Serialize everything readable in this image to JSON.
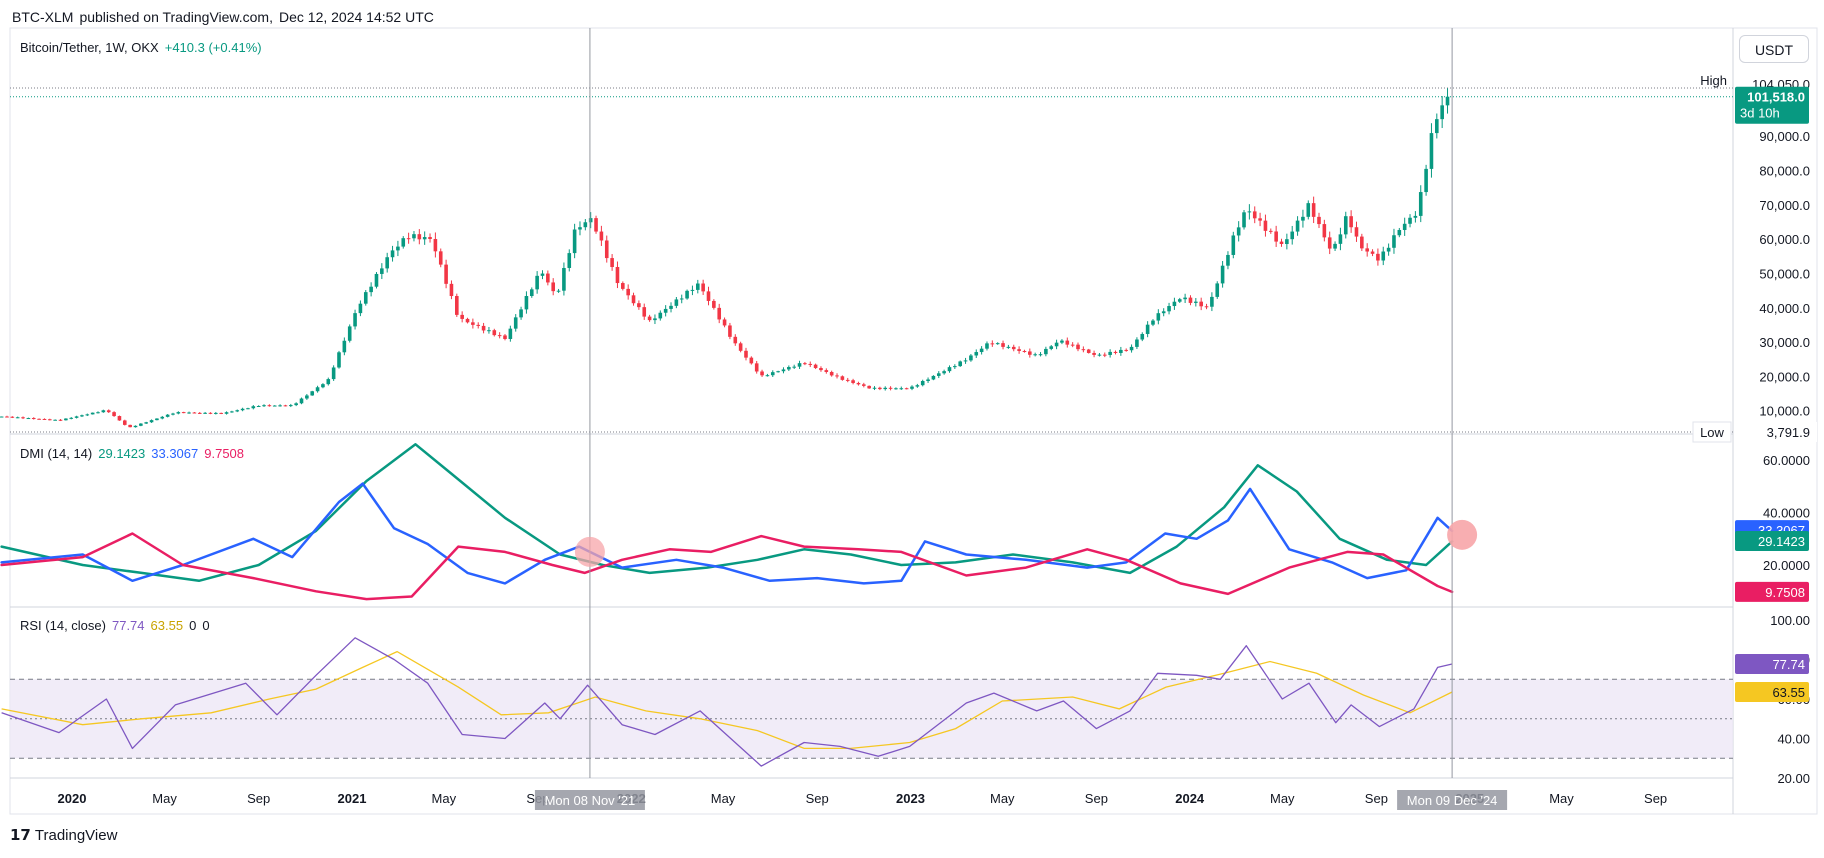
{
  "header": {
    "symbol": "BTC-XLM",
    "published_on": "published on TradingView.com,",
    "date": "Dec 12, 2024 14:52 UTC"
  },
  "price_panel": {
    "title": "Bitcoin/Tether, 1W, OKX",
    "change": "+410.3 (+0.41%)",
    "currency": "USDT",
    "high_label": "High",
    "high_value": "104,050.0",
    "low_label": "Low",
    "low_value": "3,791.9",
    "last_price": "101,518.0",
    "countdown": "3d 10h",
    "colors": {
      "up": "#089981",
      "down": "#f23645",
      "last": "#089981"
    }
  },
  "dmi": {
    "title": "DMI (14, 14)",
    "adx": "29.1423",
    "plus_di": "33.3067",
    "minus_di": "9.7508",
    "hidden_label": "40.0000",
    "colors": {
      "adx": "#089981",
      "plus": "#2962ff",
      "minus": "#e91e63",
      "marker": "#f7a5a9"
    }
  },
  "rsi": {
    "title": "RSI (14, close)",
    "rsi_value": "77.74",
    "ma_value": "63.55",
    "extra1": "0",
    "extra2": "0",
    "hidden_label": "80.00",
    "colors": {
      "rsi": "#7e57c2",
      "ma": "#f5c722",
      "band": "#ede7f6"
    }
  },
  "crosshair": {
    "left_label": "Mon 08 Nov '21",
    "right_label": "Mon 09 Dec '24"
  },
  "footer": {
    "brand": "TradingView",
    "logo": "tradingview-logo-icon"
  },
  "chart_data": [
    {
      "type": "candlestick",
      "title": "Bitcoin/Tether, 1W, OKX",
      "x_ticks": [
        "2020",
        "May",
        "Sep",
        "2021",
        "May",
        "Sep",
        "2022",
        "May",
        "Sep",
        "2023",
        "May",
        "Sep",
        "2024",
        "May",
        "Sep",
        "2025",
        "May",
        "Sep"
      ],
      "y_ticks": [
        "10,000.0",
        "20,000.0",
        "30,000.0",
        "40,000.0",
        "50,000.0",
        "60,000.0",
        "70,000.0",
        "80,000.0",
        "90,000.0"
      ],
      "ylim": [
        3791.9,
        104050
      ],
      "anchors": [
        [
          "2019-10-01",
          8300
        ],
        [
          "2019-12-15",
          7200
        ],
        [
          "2020-02-15",
          10200
        ],
        [
          "2020-03-15",
          5000
        ],
        [
          "2020-05-15",
          9500
        ],
        [
          "2020-07-15",
          9200
        ],
        [
          "2020-09-01",
          11500
        ],
        [
          "2020-10-15",
          11500
        ],
        [
          "2020-12-01",
          19000
        ],
        [
          "2021-01-08",
          40000
        ],
        [
          "2021-02-20",
          56000
        ],
        [
          "2021-03-15",
          61000
        ],
        [
          "2021-04-15",
          60000
        ],
        [
          "2021-05-20",
          37000
        ],
        [
          "2021-07-20",
          31000
        ],
        [
          "2021-09-05",
          51000
        ],
        [
          "2021-09-25",
          43000
        ],
        [
          "2021-10-20",
          63000
        ],
        [
          "2021-11-10",
          66000
        ],
        [
          "2021-12-15",
          47000
        ],
        [
          "2022-01-25",
          36000
        ],
        [
          "2022-03-30",
          47000
        ],
        [
          "2022-05-15",
          30000
        ],
        [
          "2022-06-20",
          20000
        ],
        [
          "2022-08-15",
          24000
        ],
        [
          "2022-09-30",
          19500
        ],
        [
          "2022-11-10",
          16500
        ],
        [
          "2022-12-31",
          16500
        ],
        [
          "2023-03-15",
          25000
        ],
        [
          "2023-04-15",
          30000
        ],
        [
          "2023-06-15",
          26000
        ],
        [
          "2023-07-15",
          30500
        ],
        [
          "2023-09-01",
          26000
        ],
        [
          "2023-10-15",
          28000
        ],
        [
          "2023-11-15",
          37000
        ],
        [
          "2023-12-20",
          43000
        ],
        [
          "2024-01-25",
          40000
        ],
        [
          "2024-02-28",
          61000
        ],
        [
          "2024-03-15",
          69000
        ],
        [
          "2024-05-01",
          58000
        ],
        [
          "2024-06-05",
          70000
        ],
        [
          "2024-07-05",
          56000
        ],
        [
          "2024-07-25",
          67000
        ],
        [
          "2024-08-10",
          58000
        ],
        [
          "2024-09-05",
          54000
        ],
        [
          "2024-10-01",
          63000
        ],
        [
          "2024-10-25",
          68000
        ],
        [
          "2024-11-12",
          90000
        ],
        [
          "2024-11-22",
          98000
        ],
        [
          "2024-12-09",
          101518
        ]
      ]
    },
    {
      "type": "line",
      "title": "DMI (14, 14)",
      "y_ticks": [
        "20.0000",
        "60.0000"
      ],
      "series": [
        {
          "name": "ADX",
          "points": [
            [
              "2019-10-01",
              27
            ],
            [
              "2020-01-15",
              20
            ],
            [
              "2020-04-01",
              17
            ],
            [
              "2020-06-15",
              14
            ],
            [
              "2020-09-01",
              20
            ],
            [
              "2020-11-15",
              33
            ],
            [
              "2021-01-20",
              52
            ],
            [
              "2021-03-25",
              66
            ],
            [
              "2021-05-10",
              55
            ],
            [
              "2021-07-20",
              38
            ],
            [
              "2021-09-30",
              24
            ],
            [
              "2021-11-25",
              20
            ],
            [
              "2022-01-25",
              17
            ],
            [
              "2022-04-10",
              19
            ],
            [
              "2022-06-15",
              22
            ],
            [
              "2022-08-15",
              26
            ],
            [
              "2022-10-15",
              24
            ],
            [
              "2022-12-20",
              20
            ],
            [
              "2023-03-01",
              21
            ],
            [
              "2023-05-15",
              24
            ],
            [
              "2023-08-01",
              21
            ],
            [
              "2023-10-15",
              17
            ],
            [
              "2023-12-15",
              27
            ],
            [
              "2024-02-15",
              42
            ],
            [
              "2024-03-30",
              58
            ],
            [
              "2024-05-20",
              48
            ],
            [
              "2024-07-15",
              30
            ],
            [
              "2024-09-15",
              22
            ],
            [
              "2024-11-05",
              20
            ],
            [
              "2024-12-09",
              29
            ]
          ]
        },
        {
          "name": "+DI",
          "points": [
            [
              "2019-10-01",
              21
            ],
            [
              "2020-01-15",
              24
            ],
            [
              "2020-03-20",
              14
            ],
            [
              "2020-05-25",
              20
            ],
            [
              "2020-08-25",
              30
            ],
            [
              "2020-10-15",
              23
            ],
            [
              "2020-12-15",
              44
            ],
            [
              "2021-01-15",
              51
            ],
            [
              "2021-02-25",
              34
            ],
            [
              "2021-04-10",
              28
            ],
            [
              "2021-06-01",
              17
            ],
            [
              "2021-07-20",
              13
            ],
            [
              "2021-09-10",
              22
            ],
            [
              "2021-10-25",
              27
            ],
            [
              "2021-12-20",
              19
            ],
            [
              "2022-03-01",
              22
            ],
            [
              "2022-05-01",
              19
            ],
            [
              "2022-07-01",
              14
            ],
            [
              "2022-09-01",
              15
            ],
            [
              "2022-11-01",
              13
            ],
            [
              "2022-12-20",
              14
            ],
            [
              "2023-01-20",
              29
            ],
            [
              "2023-03-15",
              24
            ],
            [
              "2023-06-01",
              22
            ],
            [
              "2023-08-20",
              19
            ],
            [
              "2023-10-10",
              21
            ],
            [
              "2023-11-30",
              32
            ],
            [
              "2024-01-10",
              30
            ],
            [
              "2024-02-20",
              37
            ],
            [
              "2024-03-20",
              49
            ],
            [
              "2024-05-10",
              26
            ],
            [
              "2024-07-05",
              21
            ],
            [
              "2024-08-20",
              15
            ],
            [
              "2024-10-10",
              18
            ],
            [
              "2024-11-20",
              38
            ],
            [
              "2024-12-09",
              33
            ]
          ]
        },
        {
          "name": "-DI",
          "points": [
            [
              "2019-10-01",
              20
            ],
            [
              "2020-01-15",
              23
            ],
            [
              "2020-03-20",
              32
            ],
            [
              "2020-05-25",
              20
            ],
            [
              "2020-08-25",
              15
            ],
            [
              "2020-11-15",
              10
            ],
            [
              "2021-01-20",
              7
            ],
            [
              "2021-03-20",
              8
            ],
            [
              "2021-05-20",
              27
            ],
            [
              "2021-07-20",
              25
            ],
            [
              "2021-09-20",
              20
            ],
            [
              "2021-11-01",
              17
            ],
            [
              "2021-12-20",
              22
            ],
            [
              "2022-02-20",
              26
            ],
            [
              "2022-04-15",
              25
            ],
            [
              "2022-06-20",
              31
            ],
            [
              "2022-08-15",
              27
            ],
            [
              "2022-10-25",
              26
            ],
            [
              "2022-12-20",
              25
            ],
            [
              "2023-03-15",
              16
            ],
            [
              "2023-06-01",
              19
            ],
            [
              "2023-08-20",
              26
            ],
            [
              "2023-10-10",
              22
            ],
            [
              "2023-12-20",
              13
            ],
            [
              "2024-02-20",
              9
            ],
            [
              "2024-05-10",
              19
            ],
            [
              "2024-07-25",
              25
            ],
            [
              "2024-09-10",
              24
            ],
            [
              "2024-11-20",
              12
            ],
            [
              "2024-12-09",
              9.75
            ]
          ]
        }
      ]
    },
    {
      "type": "line",
      "title": "RSI (14, close)",
      "y_ticks": [
        "20.00",
        "40.00",
        "60.00",
        "100.00"
      ],
      "levels": [
        70,
        50,
        30
      ],
      "series": [
        {
          "name": "RSI",
          "points": [
            [
              "2019-10-01",
              53
            ],
            [
              "2019-12-15",
              43
            ],
            [
              "2020-02-15",
              60
            ],
            [
              "2020-03-20",
              35
            ],
            [
              "2020-05-15",
              57
            ],
            [
              "2020-08-15",
              68
            ],
            [
              "2020-09-25",
              52
            ],
            [
              "2020-11-15",
              72
            ],
            [
              "2021-01-05",
              91
            ],
            [
              "2021-02-25",
              80
            ],
            [
              "2021-04-10",
              68
            ],
            [
              "2021-05-25",
              42
            ],
            [
              "2021-07-20",
              40
            ],
            [
              "2021-09-10",
              58
            ],
            [
              "2021-09-30",
              50
            ],
            [
              "2021-11-05",
              67
            ],
            [
              "2021-12-20",
              47
            ],
            [
              "2022-02-01",
              42
            ],
            [
              "2022-04-01",
              54
            ],
            [
              "2022-06-20",
              26
            ],
            [
              "2022-08-15",
              38
            ],
            [
              "2022-10-01",
              36
            ],
            [
              "2022-11-20",
              31
            ],
            [
              "2022-12-31",
              36
            ],
            [
              "2023-03-15",
              58
            ],
            [
              "2023-04-20",
              63
            ],
            [
              "2023-06-15",
              54
            ],
            [
              "2023-07-20",
              59
            ],
            [
              "2023-09-01",
              45
            ],
            [
              "2023-10-15",
              54
            ],
            [
              "2023-11-20",
              73
            ],
            [
              "2024-01-10",
              72
            ],
            [
              "2024-02-10",
              70
            ],
            [
              "2024-03-15",
              87
            ],
            [
              "2024-05-01",
              60
            ],
            [
              "2024-06-05",
              68
            ],
            [
              "2024-07-10",
              48
            ],
            [
              "2024-07-30",
              57
            ],
            [
              "2024-09-05",
              46
            ],
            [
              "2024-10-20",
              55
            ],
            [
              "2024-11-20",
              76
            ],
            [
              "2024-12-09",
              77.74
            ]
          ]
        },
        {
          "name": "MA",
          "points": [
            [
              "2019-10-01",
              55
            ],
            [
              "2020-01-15",
              47
            ],
            [
              "2020-04-01",
              50
            ],
            [
              "2020-07-01",
              53
            ],
            [
              "2020-09-15",
              60
            ],
            [
              "2020-11-15",
              65
            ],
            [
              "2021-01-15",
              76
            ],
            [
              "2021-03-01",
              84
            ],
            [
              "2021-05-20",
              66
            ],
            [
              "2021-07-15",
              52
            ],
            [
              "2021-09-15",
              53
            ],
            [
              "2021-11-15",
              61
            ],
            [
              "2022-01-20",
              54
            ],
            [
              "2022-04-01",
              50
            ],
            [
              "2022-06-15",
              44
            ],
            [
              "2022-08-15",
              35
            ],
            [
              "2022-10-15",
              35
            ],
            [
              "2022-12-31",
              38
            ],
            [
              "2023-03-01",
              45
            ],
            [
              "2023-05-01",
              59
            ],
            [
              "2023-08-01",
              61
            ],
            [
              "2023-10-01",
              55
            ],
            [
              "2023-12-01",
              66
            ],
            [
              "2024-02-15",
              73
            ],
            [
              "2024-04-15",
              79
            ],
            [
              "2024-06-15",
              73
            ],
            [
              "2024-08-15",
              62
            ],
            [
              "2024-10-15",
              53
            ],
            [
              "2024-12-09",
              63.55
            ]
          ]
        }
      ]
    }
  ]
}
